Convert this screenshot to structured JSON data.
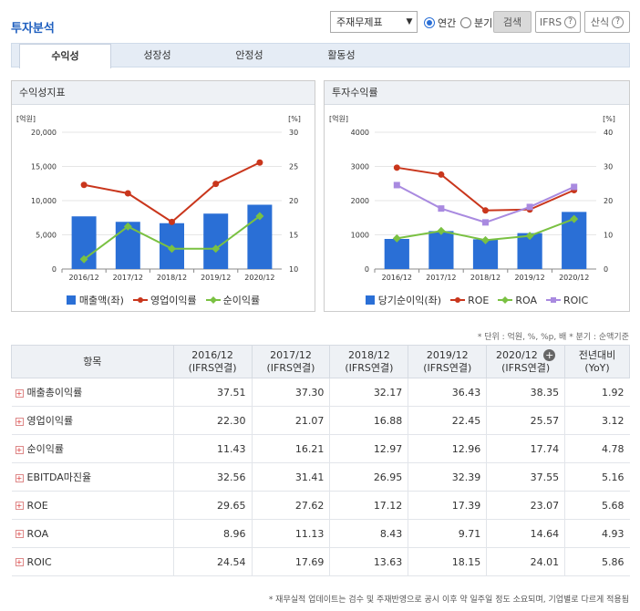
{
  "header": {
    "title": "투자분석",
    "select_value": "주재무제표",
    "radio_annual": "연간",
    "radio_quarter": "분기",
    "search_label": "검색",
    "ifrs_label": "IFRS",
    "calc_label": "산식"
  },
  "tabs": [
    "수익성",
    "성장성",
    "안정성",
    "활동성"
  ],
  "panels": {
    "left_title": "수익성지표",
    "right_title": "투자수익률"
  },
  "chart_data": [
    {
      "type": "bar",
      "categories": [
        "2016/12",
        "2017/12",
        "2018/12",
        "2019/12",
        "2020/12"
      ],
      "left_axis_unit": "[억원]",
      "right_axis_unit": "[%]",
      "ylim_left": [
        0,
        20000
      ],
      "ylim_right": [
        10,
        30
      ],
      "left_ticks": [
        "0",
        "5,000",
        "10,000",
        "15,000",
        "20,000"
      ],
      "right_ticks": [
        "10",
        "15",
        "20",
        "25",
        "30"
      ],
      "bar_series": {
        "name": "매출액(좌)",
        "values": [
          7700,
          6900,
          6700,
          8100,
          9400
        ],
        "color": "#2a6fd6"
      },
      "line_series": [
        {
          "name": "영업이익률",
          "values": [
            22.3,
            21.07,
            16.88,
            22.45,
            25.57
          ],
          "color": "#c9361c",
          "marker": "circle"
        },
        {
          "name": "순이익률",
          "values": [
            11.43,
            16.21,
            12.97,
            12.96,
            17.74
          ],
          "color": "#7ac142",
          "marker": "diamond"
        }
      ],
      "legend": "bottom"
    },
    {
      "type": "bar",
      "categories": [
        "2016/12",
        "2017/12",
        "2018/12",
        "2019/12",
        "2020/12"
      ],
      "left_axis_unit": "[억원]",
      "right_axis_unit": "[%]",
      "ylim_left": [
        0,
        4000
      ],
      "ylim_right": [
        0,
        40
      ],
      "left_ticks": [
        "0",
        "1000",
        "2000",
        "3000",
        "4000"
      ],
      "right_ticks": [
        "0",
        "10",
        "20",
        "30",
        "40"
      ],
      "bar_series": {
        "name": "당기순이익(좌)",
        "values": [
          880,
          1110,
          870,
          1050,
          1670
        ],
        "color": "#2a6fd6"
      },
      "line_series": [
        {
          "name": "ROE",
          "values": [
            29.65,
            27.62,
            17.12,
            17.39,
            23.07
          ],
          "color": "#c9361c",
          "marker": "circle"
        },
        {
          "name": "ROA",
          "values": [
            8.96,
            11.13,
            8.43,
            9.71,
            14.64
          ],
          "color": "#7ac142",
          "marker": "diamond"
        },
        {
          "name": "ROIC",
          "values": [
            24.54,
            17.69,
            13.63,
            18.15,
            24.01
          ],
          "color": "#a98ae0",
          "marker": "square"
        }
      ],
      "legend": "bottom"
    }
  ],
  "unit_note": "* 단위 : 억원, %, %p, 배   * 분기 : 순액기준",
  "table": {
    "headers": [
      {
        "l1": "항목",
        "l2": ""
      },
      {
        "l1": "2016/12",
        "l2": "(IFRS연결)"
      },
      {
        "l1": "2017/12",
        "l2": "(IFRS연결)"
      },
      {
        "l1": "2018/12",
        "l2": "(IFRS연결)"
      },
      {
        "l1": "2019/12",
        "l2": "(IFRS연결)"
      },
      {
        "l1": "2020/12",
        "l2": "(IFRS연결)"
      },
      {
        "l1": "전년대비",
        "l2": "(YoY)"
      }
    ],
    "rows": [
      {
        "item": "매출총이익률",
        "vals": [
          "37.51",
          "37.30",
          "32.17",
          "36.43",
          "38.35",
          "1.92"
        ]
      },
      {
        "item": "영업이익률",
        "vals": [
          "22.30",
          "21.07",
          "16.88",
          "22.45",
          "25.57",
          "3.12"
        ]
      },
      {
        "item": "순이익률",
        "vals": [
          "11.43",
          "16.21",
          "12.97",
          "12.96",
          "17.74",
          "4.78"
        ]
      },
      {
        "item": "EBITDA마진율",
        "vals": [
          "32.56",
          "31.41",
          "26.95",
          "32.39",
          "37.55",
          "5.16"
        ]
      },
      {
        "item": "ROE",
        "vals": [
          "29.65",
          "27.62",
          "17.12",
          "17.39",
          "23.07",
          "5.68"
        ]
      },
      {
        "item": "ROA",
        "vals": [
          "8.96",
          "11.13",
          "8.43",
          "9.71",
          "14.64",
          "4.93"
        ]
      },
      {
        "item": "ROIC",
        "vals": [
          "24.54",
          "17.69",
          "13.63",
          "18.15",
          "24.01",
          "5.86"
        ]
      }
    ]
  },
  "footnote": "* 재무실적 업데이트는 검수 및 주재반영으로 공시 이후 약 일주일 정도 소요되며, 기업별로 다르게 적용됨"
}
